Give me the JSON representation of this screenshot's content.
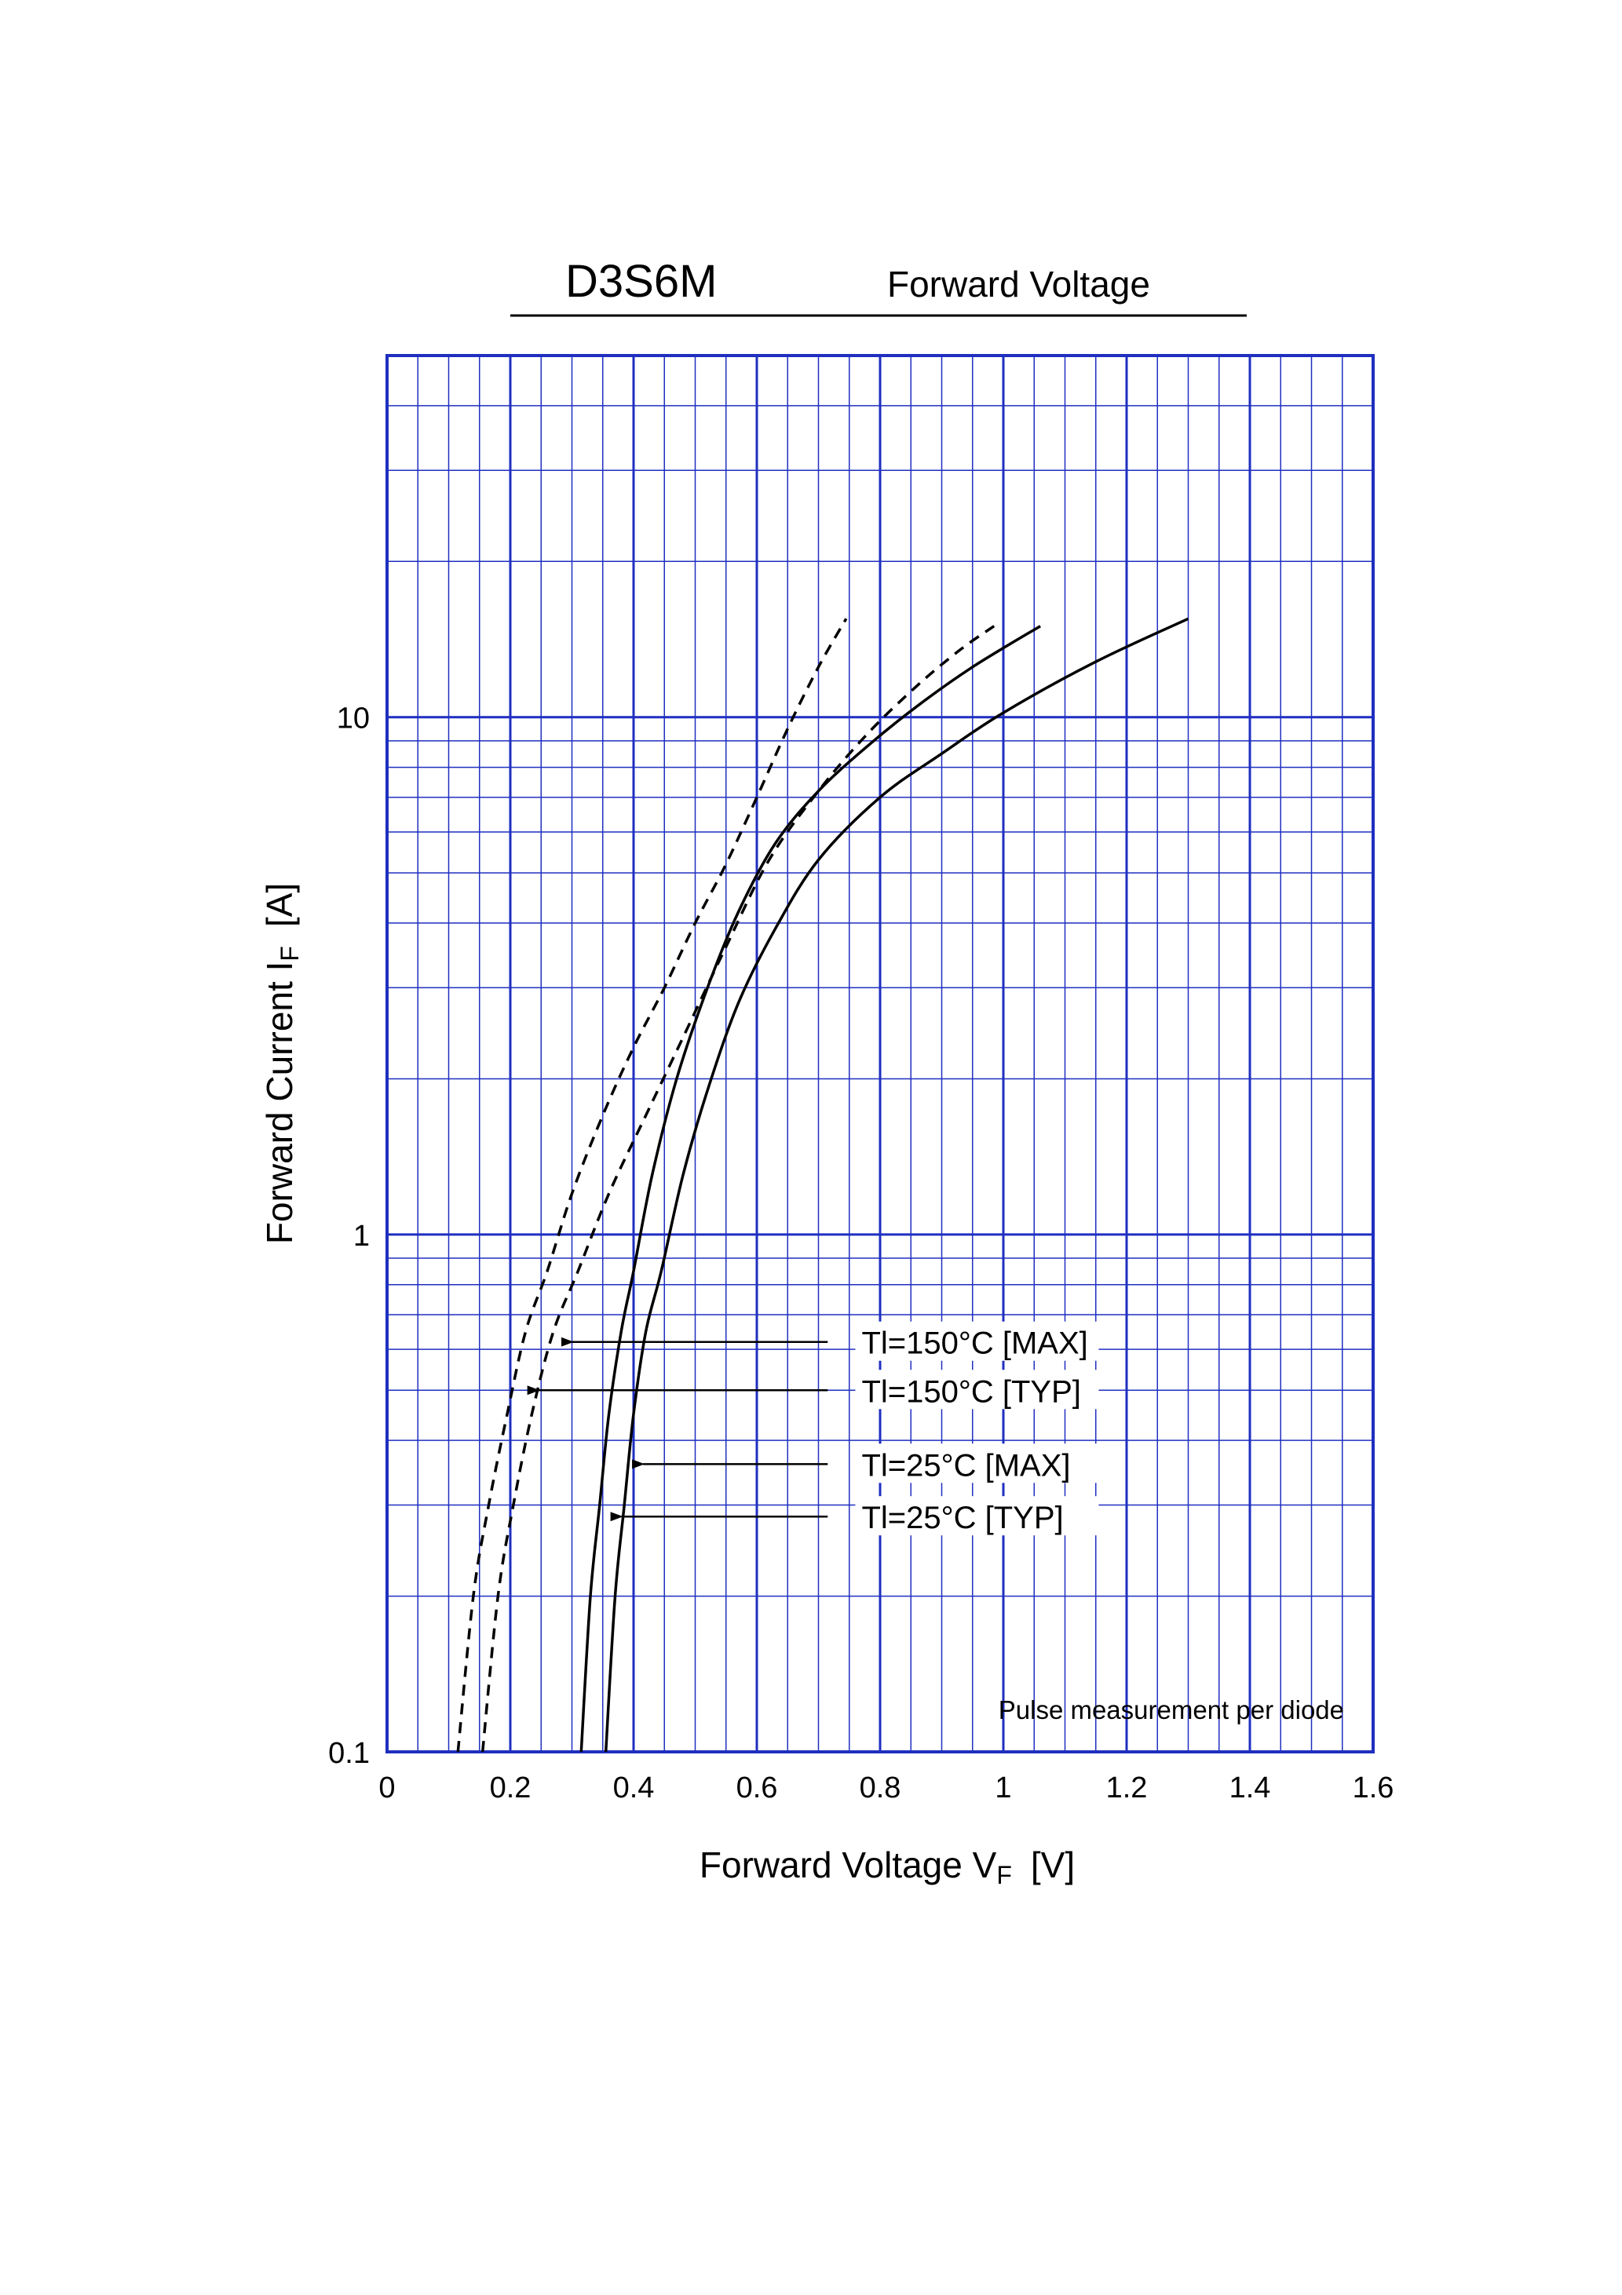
{
  "header": {
    "part_number": "D3S6M",
    "title": "Forward  Voltage"
  },
  "note": "Pulse  measurement  per  diode",
  "chart_data": {
    "type": "line",
    "title": "Forward  Voltage",
    "xlabel": "Forward Voltage  V",
    "xlabel_sub": "F",
    "xlabel_unit": "[V]",
    "ylabel": "Forward Current  I",
    "ylabel_sub": "F",
    "ylabel_unit": "[A]",
    "xlim": [
      0,
      1.6
    ],
    "ylim": [
      0.1,
      50
    ],
    "yscale": "log",
    "grid": true,
    "grid_color": "#1f2fc0",
    "x_ticks": [
      0,
      0.2,
      0.4,
      0.6,
      0.8,
      1.0,
      1.2,
      1.4,
      1.6
    ],
    "x_tick_labels": [
      "0",
      "0.2",
      "0.4",
      "0.6",
      "0.8",
      "1",
      "1.2",
      "1.4",
      "1.6"
    ],
    "y_ticks": [
      0.1,
      1,
      10
    ],
    "y_tick_labels": [
      "0.1",
      "1",
      "10"
    ],
    "series": [
      {
        "name": "Tl=150°C [MAX]",
        "style": "dashed",
        "x": [
          0.115,
          0.14,
          0.165,
          0.195,
          0.225,
          0.26,
          0.3,
          0.35,
          0.4,
          0.45,
          0.5,
          0.55,
          0.6,
          0.65,
          0.7,
          0.745
        ],
        "y": [
          0.1,
          0.2,
          0.3,
          0.45,
          0.65,
          0.85,
          1.2,
          1.7,
          2.3,
          3.0,
          4.0,
          5.2,
          7.0,
          9.5,
          12.5,
          15.5
        ]
      },
      {
        "name": "Tl=150°C [TYP]",
        "style": "dashed",
        "x": [
          0.155,
          0.18,
          0.205,
          0.235,
          0.27,
          0.31,
          0.36,
          0.42,
          0.48,
          0.55,
          0.62,
          0.7,
          0.78,
          0.86,
          0.93,
          0.985
        ],
        "y": [
          0.1,
          0.2,
          0.3,
          0.45,
          0.65,
          0.85,
          1.2,
          1.7,
          2.4,
          3.6,
          5.3,
          7.2,
          9.3,
          11.5,
          13.5,
          15.0
        ]
      },
      {
        "name": "Tl=25°C [MAX]",
        "style": "solid",
        "x": [
          0.315,
          0.33,
          0.345,
          0.36,
          0.38,
          0.4,
          0.43,
          0.47,
          0.52,
          0.57,
          0.63,
          0.7,
          0.78,
          0.86,
          0.95,
          1.06
        ],
        "y": [
          0.1,
          0.2,
          0.3,
          0.45,
          0.65,
          0.85,
          1.3,
          2.0,
          3.0,
          4.2,
          5.7,
          7.2,
          8.8,
          10.5,
          12.5,
          15.0
        ]
      },
      {
        "name": "Tl=25°C [TYP]",
        "style": "solid",
        "x": [
          0.355,
          0.37,
          0.385,
          0.4,
          0.42,
          0.445,
          0.48,
          0.52,
          0.57,
          0.63,
          0.7,
          0.8,
          0.9,
          1.0,
          1.15,
          1.3
        ],
        "y": [
          0.1,
          0.2,
          0.3,
          0.45,
          0.65,
          0.85,
          1.3,
          1.9,
          2.8,
          3.9,
          5.3,
          7.0,
          8.5,
          10.2,
          12.8,
          15.5
        ]
      }
    ],
    "annotations": [
      {
        "label": "Tl=150°C [MAX]",
        "y": 0.62,
        "arrow_tip_x": 0.28,
        "arrow_tail_x": 0.715,
        "label_x": 0.77
      },
      {
        "label": "Tl=150°C [TYP]",
        "y": 0.5,
        "arrow_tip_x": 0.225,
        "arrow_tail_x": 0.715,
        "label_x": 0.77
      },
      {
        "label": "Tl=25°C [MAX]",
        "y": 0.36,
        "arrow_tip_x": 0.395,
        "arrow_tail_x": 0.715,
        "label_x": 0.77
      },
      {
        "label": "Tl=25°C [TYP]",
        "y": 0.285,
        "arrow_tip_x": 0.36,
        "arrow_tail_x": 0.715,
        "label_x": 0.77
      }
    ]
  }
}
